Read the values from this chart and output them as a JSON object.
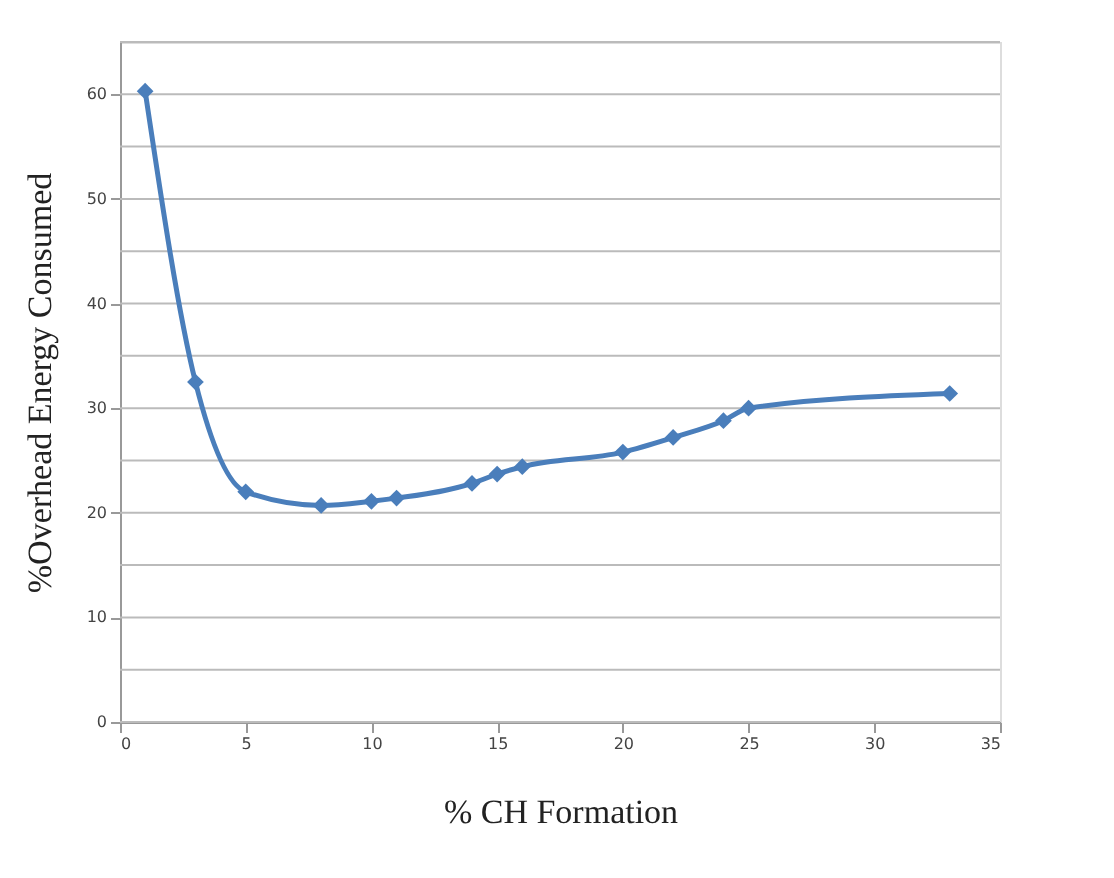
{
  "chart_data": {
    "type": "line",
    "xlabel": "% CH Formation",
    "ylabel": "%Overhead Energy Consumed",
    "x": [
      1,
      3,
      5,
      8,
      10,
      11,
      14,
      15,
      16,
      20,
      22,
      24,
      25,
      33
    ],
    "series": [
      {
        "color": "#4a7ebb",
        "values": [
          60.3,
          32.5,
          22,
          20.7,
          21.1,
          21.4,
          22.8,
          23.7,
          24.4,
          25.8,
          27.2,
          28.8,
          30,
          31.4
        ]
      }
    ],
    "xlim": [
      0,
      35
    ],
    "xticks": [
      0,
      5,
      10,
      15,
      20,
      25,
      30,
      35
    ],
    "ylim": [
      0,
      65
    ],
    "yticks": [
      0,
      {
        "value": 5,
        "label": null
      },
      10,
      {
        "value": 15,
        "label": null
      },
      20,
      {
        "value": 25,
        "label": null
      },
      30,
      {
        "value": 35,
        "label": null
      },
      40,
      {
        "value": 45,
        "label": null
      },
      50,
      {
        "value": 55,
        "label": null
      },
      60,
      {
        "value": 65,
        "label": null
      }
    ],
    "grid": "y",
    "marker": "diamond",
    "line_style": "solid"
  }
}
